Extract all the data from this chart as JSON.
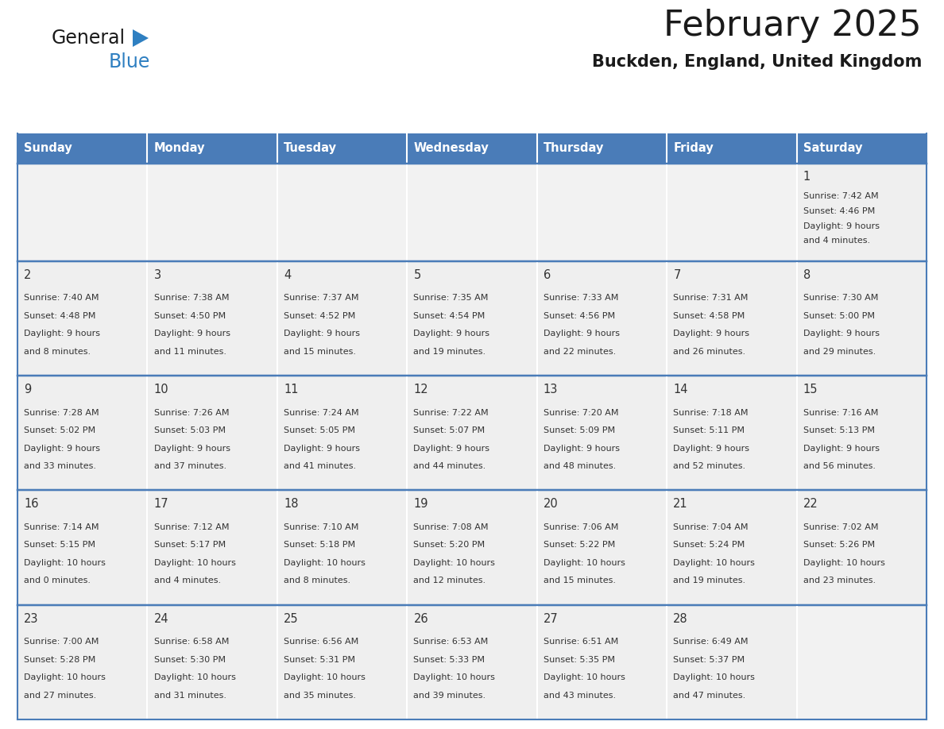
{
  "title": "February 2025",
  "subtitle": "Buckden, England, United Kingdom",
  "days_of_week": [
    "Sunday",
    "Monday",
    "Tuesday",
    "Wednesday",
    "Thursday",
    "Friday",
    "Saturday"
  ],
  "header_bg": "#4a7cb8",
  "header_text": "#ffffff",
  "cell_bg_odd": "#efefef",
  "cell_bg_even": "#f7f7f7",
  "cell_empty_bg": "#f2f2f2",
  "row_border_color": "#4a7cb8",
  "col_border_color": "#ffffff",
  "text_color": "#333333",
  "calendar_data": [
    [
      null,
      null,
      null,
      null,
      null,
      null,
      {
        "day": 1,
        "sunrise": "7:42 AM",
        "sunset": "4:46 PM",
        "daylight": "9 hours",
        "daylight2": "and 4 minutes."
      }
    ],
    [
      {
        "day": 2,
        "sunrise": "7:40 AM",
        "sunset": "4:48 PM",
        "daylight": "9 hours",
        "daylight2": "and 8 minutes."
      },
      {
        "day": 3,
        "sunrise": "7:38 AM",
        "sunset": "4:50 PM",
        "daylight": "9 hours",
        "daylight2": "and 11 minutes."
      },
      {
        "day": 4,
        "sunrise": "7:37 AM",
        "sunset": "4:52 PM",
        "daylight": "9 hours",
        "daylight2": "and 15 minutes."
      },
      {
        "day": 5,
        "sunrise": "7:35 AM",
        "sunset": "4:54 PM",
        "daylight": "9 hours",
        "daylight2": "and 19 minutes."
      },
      {
        "day": 6,
        "sunrise": "7:33 AM",
        "sunset": "4:56 PM",
        "daylight": "9 hours",
        "daylight2": "and 22 minutes."
      },
      {
        "day": 7,
        "sunrise": "7:31 AM",
        "sunset": "4:58 PM",
        "daylight": "9 hours",
        "daylight2": "and 26 minutes."
      },
      {
        "day": 8,
        "sunrise": "7:30 AM",
        "sunset": "5:00 PM",
        "daylight": "9 hours",
        "daylight2": "and 29 minutes."
      }
    ],
    [
      {
        "day": 9,
        "sunrise": "7:28 AM",
        "sunset": "5:02 PM",
        "daylight": "9 hours",
        "daylight2": "and 33 minutes."
      },
      {
        "day": 10,
        "sunrise": "7:26 AM",
        "sunset": "5:03 PM",
        "daylight": "9 hours",
        "daylight2": "and 37 minutes."
      },
      {
        "day": 11,
        "sunrise": "7:24 AM",
        "sunset": "5:05 PM",
        "daylight": "9 hours",
        "daylight2": "and 41 minutes."
      },
      {
        "day": 12,
        "sunrise": "7:22 AM",
        "sunset": "5:07 PM",
        "daylight": "9 hours",
        "daylight2": "and 44 minutes."
      },
      {
        "day": 13,
        "sunrise": "7:20 AM",
        "sunset": "5:09 PM",
        "daylight": "9 hours",
        "daylight2": "and 48 minutes."
      },
      {
        "day": 14,
        "sunrise": "7:18 AM",
        "sunset": "5:11 PM",
        "daylight": "9 hours",
        "daylight2": "and 52 minutes."
      },
      {
        "day": 15,
        "sunrise": "7:16 AM",
        "sunset": "5:13 PM",
        "daylight": "9 hours",
        "daylight2": "and 56 minutes."
      }
    ],
    [
      {
        "day": 16,
        "sunrise": "7:14 AM",
        "sunset": "5:15 PM",
        "daylight": "10 hours",
        "daylight2": "and 0 minutes."
      },
      {
        "day": 17,
        "sunrise": "7:12 AM",
        "sunset": "5:17 PM",
        "daylight": "10 hours",
        "daylight2": "and 4 minutes."
      },
      {
        "day": 18,
        "sunrise": "7:10 AM",
        "sunset": "5:18 PM",
        "daylight": "10 hours",
        "daylight2": "and 8 minutes."
      },
      {
        "day": 19,
        "sunrise": "7:08 AM",
        "sunset": "5:20 PM",
        "daylight": "10 hours",
        "daylight2": "and 12 minutes."
      },
      {
        "day": 20,
        "sunrise": "7:06 AM",
        "sunset": "5:22 PM",
        "daylight": "10 hours",
        "daylight2": "and 15 minutes."
      },
      {
        "day": 21,
        "sunrise": "7:04 AM",
        "sunset": "5:24 PM",
        "daylight": "10 hours",
        "daylight2": "and 19 minutes."
      },
      {
        "day": 22,
        "sunrise": "7:02 AM",
        "sunset": "5:26 PM",
        "daylight": "10 hours",
        "daylight2": "and 23 minutes."
      }
    ],
    [
      {
        "day": 23,
        "sunrise": "7:00 AM",
        "sunset": "5:28 PM",
        "daylight": "10 hours",
        "daylight2": "and 27 minutes."
      },
      {
        "day": 24,
        "sunrise": "6:58 AM",
        "sunset": "5:30 PM",
        "daylight": "10 hours",
        "daylight2": "and 31 minutes."
      },
      {
        "day": 25,
        "sunrise": "6:56 AM",
        "sunset": "5:31 PM",
        "daylight": "10 hours",
        "daylight2": "and 35 minutes."
      },
      {
        "day": 26,
        "sunrise": "6:53 AM",
        "sunset": "5:33 PM",
        "daylight": "10 hours",
        "daylight2": "and 39 minutes."
      },
      {
        "day": 27,
        "sunrise": "6:51 AM",
        "sunset": "5:35 PM",
        "daylight": "10 hours",
        "daylight2": "and 43 minutes."
      },
      {
        "day": 28,
        "sunrise": "6:49 AM",
        "sunset": "5:37 PM",
        "daylight": "10 hours",
        "daylight2": "and 47 minutes."
      },
      null
    ]
  ]
}
